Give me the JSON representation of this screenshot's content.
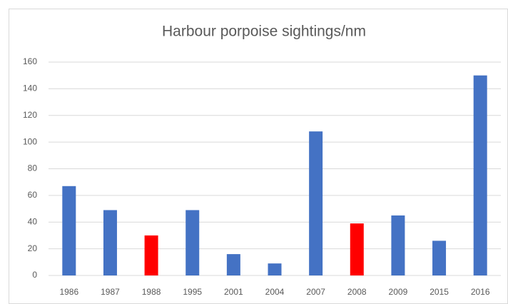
{
  "chart_data": {
    "type": "bar",
    "title": "Harbour porpoise sightings/nm",
    "categories": [
      "1986",
      "1987",
      "1988",
      "1995",
      "2001",
      "2004",
      "2007",
      "2008",
      "2009",
      "2015",
      "2016"
    ],
    "values": [
      67,
      49,
      30,
      49,
      16,
      9,
      108,
      39,
      45,
      26,
      150
    ],
    "colors": [
      "#4472c4",
      "#4472c4",
      "#ff0000",
      "#4472c4",
      "#4472c4",
      "#4472c4",
      "#4472c4",
      "#ff0000",
      "#4472c4",
      "#4472c4",
      "#4472c4"
    ],
    "ylim": [
      0,
      160
    ],
    "yticks": [
      0,
      20,
      40,
      60,
      80,
      100,
      120,
      140,
      160
    ],
    "grid": true
  }
}
